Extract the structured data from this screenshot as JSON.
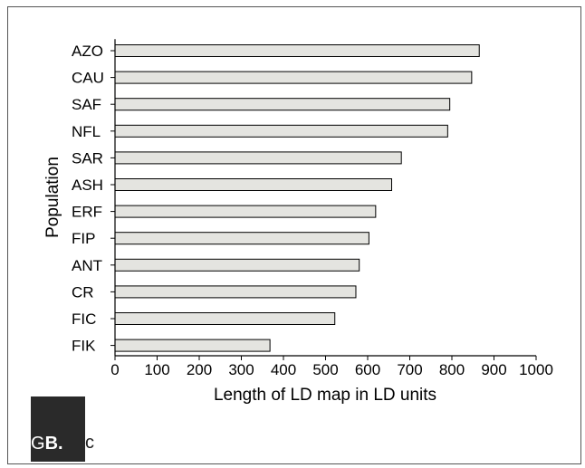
{
  "chart_data": {
    "type": "bar",
    "orientation": "horizontal",
    "categories": [
      "AZO",
      "CAU",
      "SAF",
      "NFL",
      "SAR",
      "ASH",
      "ERF",
      "FIP",
      "ANT",
      "CR",
      "FIC",
      "FIK"
    ],
    "values": [
      865,
      847,
      795,
      790,
      680,
      657,
      619,
      603,
      580,
      572,
      522,
      368
    ],
    "xlabel": "Length of LD map in LD units",
    "ylabel": "Population",
    "xlim": [
      0,
      1000
    ],
    "xticks": [
      0,
      100,
      200,
      300,
      400,
      500,
      600,
      700,
      800,
      900,
      1000
    ],
    "bar_color": "#e4e4e0",
    "grid": false
  },
  "logo": {
    "part1": "G",
    "part2": "B.",
    "part3": "c"
  }
}
